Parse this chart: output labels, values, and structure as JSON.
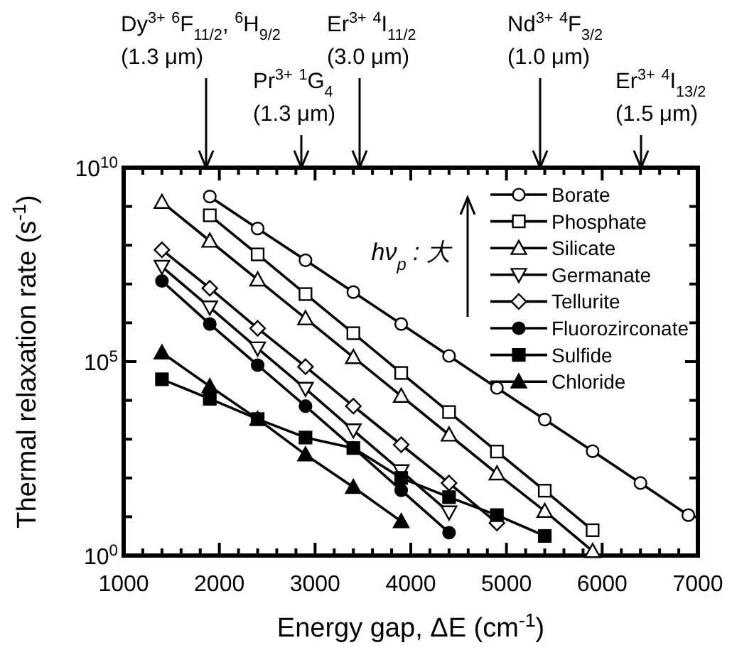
{
  "chart_data": {
    "type": "line",
    "log": "y",
    "xlabel": "Energy gap, ΔE (cm$^{-1}$)",
    "ylabel": "Thermal relaxation rate (s$^{-1}$)",
    "legend": "top right",
    "line_style": "solid",
    "xlim": [
      1000,
      7000
    ],
    "ylim": [
      1,
      10000000000
    ],
    "xticks": [
      1000,
      {
        "value": 1200,
        "label": null
      },
      {
        "value": 1400,
        "label": null
      },
      {
        "value": 1600,
        "label": null
      },
      {
        "value": 1800,
        "label": null
      },
      2000,
      {
        "value": 2200,
        "label": null
      },
      {
        "value": 2400,
        "label": null
      },
      {
        "value": 2600,
        "label": null
      },
      {
        "value": 2800,
        "label": null
      },
      3000,
      {
        "value": 3200,
        "label": null
      },
      {
        "value": 3400,
        "label": null
      },
      {
        "value": 3600,
        "label": null
      },
      {
        "value": 3800,
        "label": null
      },
      4000,
      {
        "value": 4200,
        "label": null
      },
      {
        "value": 4400,
        "label": null
      },
      {
        "value": 4600,
        "label": null
      },
      {
        "value": 4800,
        "label": null
      },
      5000,
      {
        "value": 5200,
        "label": null
      },
      {
        "value": 5400,
        "label": null
      },
      {
        "value": 5600,
        "label": null
      },
      {
        "value": 5800,
        "label": null
      },
      6000,
      {
        "value": 6200,
        "label": null
      },
      {
        "value": 6400,
        "label": null
      },
      {
        "value": 6600,
        "label": null
      },
      {
        "value": 6800,
        "label": null
      },
      7000
    ],
    "yticks": [
      {
        "value": 1,
        "label": "10$^{0}$"
      },
      {
        "value": 10,
        "label": null
      },
      {
        "value": 100,
        "label": null
      },
      {
        "value": 1000,
        "label": null
      },
      {
        "value": 10000,
        "label": null
      },
      {
        "value": 100000,
        "label": "10$^{5}$"
      },
      {
        "value": 1000000,
        "label": null
      },
      {
        "value": 10000000,
        "label": null
      },
      {
        "value": 100000000,
        "label": null
      },
      {
        "value": 1000000000,
        "label": null
      },
      {
        "value": 10000000000,
        "label": "10$^{10}$"
      }
    ],
    "series": [
      {
        "name": "Borate",
        "color": "#000000",
        "marker": "circle",
        "x": [
          1900,
          2400,
          2900,
          3400,
          3900,
          4400,
          4900,
          5400,
          5900,
          6400,
          6900
        ],
        "values": [
          1800000000,
          270000000,
          41000000,
          6200000,
          930000,
          140000,
          21000,
          3200,
          490,
          74,
          11
        ]
      },
      {
        "name": "Phosphate",
        "color": "#000000",
        "marker": "square",
        "x": [
          1900,
          2400,
          2900,
          3400,
          3900,
          4400,
          4900,
          5400,
          5900
        ],
        "values": [
          590000000,
          58000000,
          5500000,
          540000,
          51000,
          5000,
          480,
          47,
          4.5
        ]
      },
      {
        "name": "Silicate",
        "color": "#000000",
        "marker": "triangle",
        "x": [
          1400,
          1900,
          2400,
          2900,
          3400,
          3900,
          4400,
          4900,
          5400,
          5900
        ],
        "values": [
          1300000000,
          130000000,
          13000000,
          1300000,
          130000,
          13000,
          1300,
          130,
          14,
          1.3
        ]
      },
      {
        "name": "Germanate",
        "color": "#000000",
        "marker": "triangle-down",
        "x": [
          1400,
          1900,
          2400,
          2900,
          3400,
          3900,
          4400
        ],
        "values": [
          28000000,
          2500000,
          220000,
          20000,
          1700,
          150,
          13
        ]
      },
      {
        "name": "Tellurite",
        "color": "#000000",
        "marker": "diamond",
        "x": [
          1400,
          1900,
          2400,
          2900,
          3400,
          3900,
          4400,
          4900
        ],
        "values": [
          76000000,
          7800000,
          720000,
          74000,
          7100,
          720,
          74,
          6.9
        ]
      },
      {
        "name": "Fluorozirconate",
        "color": "#000000",
        "marker": "circle",
        "x": [
          1400,
          1900,
          2400,
          2900,
          3400,
          3900,
          4400
        ],
        "values": [
          12000000,
          930000,
          81000,
          7100,
          600,
          48,
          3.9
        ]
      },
      {
        "name": "Sulfide",
        "color": "#000000",
        "marker": "square",
        "x": [
          1400,
          1900,
          2400,
          2900,
          3400,
          3900,
          4400,
          4900,
          5400
        ],
        "values": [
          35000,
          11000,
          3300,
          1100,
          590,
          100,
          32,
          11,
          3.2
        ]
      },
      {
        "name": "Chloride",
        "color": "#000000",
        "marker": "triangle",
        "x": [
          1400,
          1900,
          2400,
          2900,
          3400,
          3900
        ],
        "values": [
          170000,
          23000,
          3300,
          400,
          58,
          7.6
        ]
      }
    ],
    "annotations": [
      "Dy$^{3+}$ $^{6}$F$_{11/2}$, $^{6}$H$_{9/2}$",
      "(1.3 μm)",
      "Pr$^{3+}$ $^{1}$G$_{4}$",
      "(1.3 μm)",
      "Er$^{3+}$ $^{4}$I$_{11/2}$",
      "(3.0 μm)",
      "Nd$^{3+}$ $^{4}$F$_{3/2}$",
      "(1.0 μm)",
      "Er$^{3+}$ $^{4}$I$_{13/2}$",
      "(1.5 μm)",
      "hν$_{p}$ : 大"
    ]
  }
}
